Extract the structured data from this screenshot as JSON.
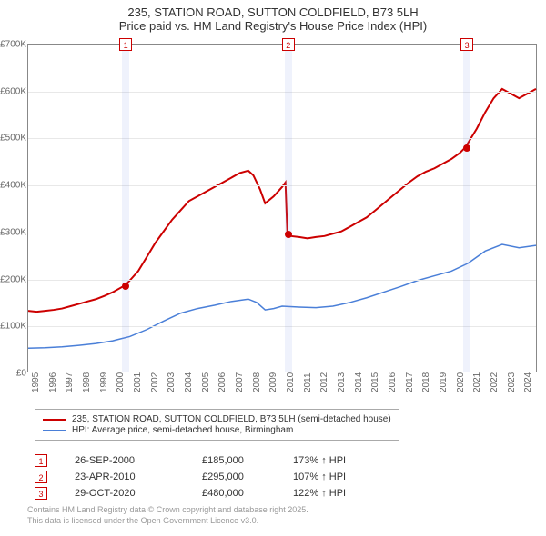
{
  "title": {
    "line1": "235, STATION ROAD, SUTTON COLDFIELD, B73 5LH",
    "line2": "Price paid vs. HM Land Registry's House Price Index (HPI)",
    "fontsize": 13,
    "color": "#333333"
  },
  "chart": {
    "type": "line",
    "background_color": "#ffffff",
    "border_color": "#888888",
    "grid_color": "#e8e8e8",
    "x_range": [
      1995,
      2025
    ],
    "y_range": [
      0,
      700000
    ],
    "y_ticks": [
      0,
      100000,
      200000,
      300000,
      400000,
      500000,
      600000,
      700000
    ],
    "y_tick_labels": [
      "£0",
      "£100K",
      "£200K",
      "£300K",
      "£400K",
      "£500K",
      "£600K",
      "£700K"
    ],
    "x_ticks": [
      1995,
      1996,
      1997,
      1998,
      1999,
      2000,
      2001,
      2002,
      2003,
      2004,
      2005,
      2006,
      2007,
      2008,
      2009,
      2010,
      2011,
      2012,
      2013,
      2014,
      2015,
      2016,
      2017,
      2018,
      2019,
      2020,
      2021,
      2022,
      2023,
      2024
    ],
    "x_tick_labels": [
      "1995",
      "1996",
      "1997",
      "1998",
      "1999",
      "2000",
      "2001",
      "2002",
      "2003",
      "2004",
      "2005",
      "2006",
      "2007",
      "2008",
      "2009",
      "2010",
      "2011",
      "2012",
      "2013",
      "2014",
      "2015",
      "2016",
      "2017",
      "2018",
      "2019",
      "2020",
      "2021",
      "2022",
      "2023",
      "2024"
    ],
    "tick_fontsize": 10,
    "tick_color": "#666666",
    "marker_band_color": "rgba(120,150,230,0.12)",
    "marker_band_width_years": 0.4,
    "series": [
      {
        "key": "property",
        "label": "235, STATION ROAD, SUTTON COLDFIELD, B73 5LH (semi-detached house)",
        "color": "#cc0000",
        "line_width": 2,
        "data": [
          [
            1995.0,
            130000
          ],
          [
            1995.5,
            128000
          ],
          [
            1996.0,
            130000
          ],
          [
            1996.5,
            132000
          ],
          [
            1997.0,
            135000
          ],
          [
            1997.5,
            140000
          ],
          [
            1998.0,
            145000
          ],
          [
            1998.5,
            150000
          ],
          [
            1999.0,
            155000
          ],
          [
            1999.5,
            162000
          ],
          [
            2000.0,
            170000
          ],
          [
            2000.74,
            185000
          ],
          [
            2001.0,
            195000
          ],
          [
            2001.5,
            215000
          ],
          [
            2002.0,
            245000
          ],
          [
            2002.5,
            275000
          ],
          [
            2003.0,
            300000
          ],
          [
            2003.5,
            325000
          ],
          [
            2004.0,
            345000
          ],
          [
            2004.5,
            365000
          ],
          [
            2005.0,
            375000
          ],
          [
            2005.5,
            385000
          ],
          [
            2006.0,
            395000
          ],
          [
            2006.5,
            405000
          ],
          [
            2007.0,
            415000
          ],
          [
            2007.5,
            425000
          ],
          [
            2008.0,
            430000
          ],
          [
            2008.3,
            420000
          ],
          [
            2008.7,
            390000
          ],
          [
            2009.0,
            360000
          ],
          [
            2009.5,
            375000
          ],
          [
            2010.0,
            395000
          ],
          [
            2010.2,
            405000
          ],
          [
            2010.31,
            295000
          ],
          [
            2010.5,
            290000
          ],
          [
            2011.0,
            288000
          ],
          [
            2011.5,
            285000
          ],
          [
            2012.0,
            288000
          ],
          [
            2012.5,
            290000
          ],
          [
            2013.0,
            295000
          ],
          [
            2013.5,
            300000
          ],
          [
            2014.0,
            310000
          ],
          [
            2014.5,
            320000
          ],
          [
            2015.0,
            330000
          ],
          [
            2015.5,
            345000
          ],
          [
            2016.0,
            360000
          ],
          [
            2016.5,
            375000
          ],
          [
            2017.0,
            390000
          ],
          [
            2017.5,
            405000
          ],
          [
            2018.0,
            418000
          ],
          [
            2018.5,
            428000
          ],
          [
            2019.0,
            435000
          ],
          [
            2019.5,
            445000
          ],
          [
            2020.0,
            455000
          ],
          [
            2020.5,
            468000
          ],
          [
            2020.83,
            480000
          ],
          [
            2021.0,
            490000
          ],
          [
            2021.5,
            520000
          ],
          [
            2022.0,
            555000
          ],
          [
            2022.5,
            585000
          ],
          [
            2023.0,
            605000
          ],
          [
            2023.5,
            595000
          ],
          [
            2024.0,
            585000
          ],
          [
            2024.5,
            595000
          ],
          [
            2025.0,
            605000
          ]
        ]
      },
      {
        "key": "hpi",
        "label": "HPI: Average price, semi-detached house, Birmingham",
        "color": "#4a7fd8",
        "line_width": 1.5,
        "data": [
          [
            1995.0,
            50000
          ],
          [
            1996.0,
            51000
          ],
          [
            1997.0,
            53000
          ],
          [
            1998.0,
            56000
          ],
          [
            1999.0,
            60000
          ],
          [
            2000.0,
            66000
          ],
          [
            2001.0,
            75000
          ],
          [
            2002.0,
            90000
          ],
          [
            2003.0,
            108000
          ],
          [
            2004.0,
            125000
          ],
          [
            2005.0,
            135000
          ],
          [
            2006.0,
            142000
          ],
          [
            2007.0,
            150000
          ],
          [
            2008.0,
            155000
          ],
          [
            2008.5,
            148000
          ],
          [
            2009.0,
            132000
          ],
          [
            2009.5,
            135000
          ],
          [
            2010.0,
            140000
          ],
          [
            2011.0,
            138000
          ],
          [
            2012.0,
            137000
          ],
          [
            2013.0,
            140000
          ],
          [
            2014.0,
            148000
          ],
          [
            2015.0,
            158000
          ],
          [
            2016.0,
            170000
          ],
          [
            2017.0,
            182000
          ],
          [
            2018.0,
            195000
          ],
          [
            2019.0,
            205000
          ],
          [
            2020.0,
            215000
          ],
          [
            2021.0,
            232000
          ],
          [
            2022.0,
            258000
          ],
          [
            2023.0,
            272000
          ],
          [
            2024.0,
            265000
          ],
          [
            2025.0,
            270000
          ]
        ]
      }
    ],
    "event_markers": [
      {
        "n": "1",
        "year": 2000.74,
        "price": 185000
      },
      {
        "n": "2",
        "year": 2010.31,
        "price": 295000
      },
      {
        "n": "3",
        "year": 2020.83,
        "price": 480000
      }
    ],
    "marker_box_top_offset": -7,
    "dot_color": "#cc0000"
  },
  "legend": {
    "border_color": "#aaaaaa",
    "fontsize": 10,
    "items": [
      {
        "color": "#cc0000",
        "width": 2,
        "label_key": "chart.series.0.label"
      },
      {
        "color": "#4a7fd8",
        "width": 1.5,
        "label_key": "chart.series.1.label"
      }
    ]
  },
  "markers_table": {
    "rows": [
      {
        "n": "1",
        "date": "26-SEP-2000",
        "price": "£185,000",
        "pct": "173%",
        "arrow": "↑",
        "suffix": "HPI"
      },
      {
        "n": "2",
        "date": "23-APR-2010",
        "price": "£295,000",
        "pct": "107%",
        "arrow": "↑",
        "suffix": "HPI"
      },
      {
        "n": "3",
        "date": "29-OCT-2020",
        "price": "£480,000",
        "pct": "122%",
        "arrow": "↑",
        "suffix": "HPI"
      }
    ],
    "fontsize": 11,
    "num_box_color": "#cc0000"
  },
  "footer": {
    "line1": "Contains HM Land Registry data © Crown copyright and database right 2025.",
    "line2": "This data is licensed under the Open Government Licence v3.0.",
    "fontsize": 9,
    "color": "#999999"
  }
}
